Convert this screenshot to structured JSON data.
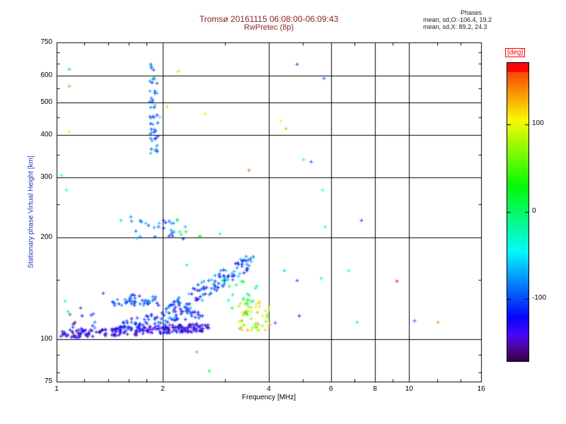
{
  "title": {
    "line1": "Tromsø 20161115 06:08:00-06:09:43",
    "line2": "RwPretec (8p)"
  },
  "phases": {
    "header": "Phases",
    "line_o": "mean, sd,O:-106.4, 19.2",
    "line_x": "mean, sd,X:  89.2, 24.3"
  },
  "colors": {
    "title_color": "#8b2323",
    "y_label_color": "#2233bb",
    "deg_label_color": "#ff0000",
    "frame_color": "#000000"
  },
  "chart_data": {
    "type": "scatter",
    "title": "Tromsø 20161115 06:08:00-06:09:43  RwPretec (8p)",
    "xlabel": "Frequency [MHz]",
    "ylabel": "Stationary phase Virtual Height [km]",
    "x_scale": "log",
    "y_scale": "log",
    "xlim": [
      1,
      16
    ],
    "ylim": [
      75,
      750
    ],
    "x_ticks": [
      1,
      2,
      4,
      6,
      8,
      10,
      16
    ],
    "y_ticks": [
      75,
      100,
      200,
      300,
      400,
      500,
      600,
      750
    ],
    "x_gridlines": [
      2,
      4,
      6,
      8,
      10
    ],
    "y_gridlines": [
      100,
      200,
      300,
      400,
      500,
      600
    ],
    "x_minor": [
      1.2,
      1.4,
      1.6,
      1.8,
      3,
      5,
      7,
      9,
      12,
      14
    ],
    "y_minor": [
      80,
      90,
      150,
      250,
      350,
      450,
      550,
      650,
      700
    ],
    "grid": true,
    "marker": "plus",
    "colorbar": {
      "label": "[deg]",
      "range": [
        -170,
        170
      ],
      "ticks": [
        100,
        0,
        -100
      ],
      "position": "right"
    },
    "points": [
      [
        1.08,
        628,
        20
      ],
      [
        1.08,
        560,
        140
      ],
      [
        1.08,
        412,
        110
      ],
      [
        1.03,
        306,
        -40
      ],
      [
        1.06,
        277,
        -40
      ],
      [
        1.05,
        130,
        -30
      ],
      [
        1.07,
        121,
        10
      ],
      [
        1.12,
        113,
        170
      ],
      [
        2.2,
        620,
        120
      ],
      [
        2.63,
        464,
        100
      ],
      [
        1.95,
        453,
        -45
      ],
      [
        2.05,
        487,
        120
      ],
      [
        4.8,
        649,
        -100
      ],
      [
        5.7,
        590,
        -90
      ],
      [
        4.3,
        442,
        100
      ],
      [
        4.45,
        420,
        130
      ],
      [
        3.5,
        316,
        150
      ],
      [
        5.0,
        340,
        -40
      ],
      [
        5.25,
        335,
        -95
      ],
      [
        5.65,
        277,
        -45
      ],
      [
        5.75,
        215,
        -45
      ],
      [
        7.3,
        225,
        -100
      ],
      [
        6.7,
        160,
        -40
      ],
      [
        5.6,
        152,
        -35
      ],
      [
        4.8,
        150,
        -100
      ],
      [
        7.1,
        113,
        10
      ],
      [
        9.2,
        149,
        175
      ],
      [
        12.0,
        113,
        140
      ],
      [
        2.7,
        81,
        20
      ],
      [
        2.48,
        92,
        140
      ],
      [
        1.35,
        137,
        -100
      ],
      [
        4.85,
        118,
        -110
      ],
      [
        10.3,
        114,
        -90
      ],
      [
        4.15,
        112,
        -95
      ],
      [
        4.4,
        160,
        -60
      ],
      [
        2.9,
        205,
        -30
      ],
      [
        2.33,
        166,
        0
      ]
    ],
    "clusters": [
      {
        "name": "e-region-trace",
        "shape": "trace",
        "n": 220,
        "f": [
          1.02,
          2.7
        ],
        "h": [
          104,
          109
        ],
        "h_jitter": 3,
        "deg": [
          -160,
          -105
        ]
      },
      {
        "name": "e-region-upper",
        "shape": "trace",
        "n": 60,
        "f": [
          1.5,
          2.65
        ],
        "h": [
          112,
          120
        ],
        "h_jitter": 4,
        "deg": [
          -130,
          -90
        ]
      },
      {
        "name": "rising-band",
        "shape": "trace",
        "n": 130,
        "f": [
          2.0,
          3.6
        ],
        "h": [
          115,
          172
        ],
        "h_jitter": 9,
        "deg": [
          -130,
          -60
        ]
      },
      {
        "name": "mid-band",
        "shape": "blob",
        "n": 45,
        "f": [
          1.42,
          1.95
        ],
        "h": [
          126,
          136
        ],
        "h_jitter": 0,
        "deg": [
          -120,
          -75
        ]
      },
      {
        "name": "upper-cluster",
        "shape": "blob",
        "n": 30,
        "f": [
          1.5,
          2.35
        ],
        "h": [
          198,
          232
        ],
        "h_jitter": 0,
        "deg": [
          -140,
          -60
        ]
      },
      {
        "name": "upper-cluster-green",
        "shape": "blob",
        "n": 7,
        "f": [
          2.1,
          2.55
        ],
        "h": [
          200,
          235
        ],
        "h_jitter": 0,
        "deg": [
          -30,
          40
        ]
      },
      {
        "name": "vertical-streak",
        "shape": "blob",
        "n": 48,
        "f": [
          1.83,
          1.93
        ],
        "h": [
          355,
          655
        ],
        "h_jitter": 0,
        "deg": [
          -115,
          -65
        ]
      },
      {
        "name": "yellow-cluster",
        "shape": "blob",
        "n": 50,
        "f": [
          3.25,
          4.0
        ],
        "h": [
          106,
          132
        ],
        "h_jitter": 0,
        "deg": [
          55,
          140
        ]
      },
      {
        "name": "cyan-green-mix",
        "shape": "blob",
        "n": 22,
        "f": [
          2.9,
          3.7
        ],
        "h": [
          118,
          152
        ],
        "h_jitter": 0,
        "deg": [
          -45,
          35
        ]
      },
      {
        "name": "left-sparse",
        "shape": "blob",
        "n": 12,
        "f": [
          1.05,
          1.3
        ],
        "h": [
          108,
          125
        ],
        "h_jitter": 0,
        "deg": [
          -120,
          -70
        ]
      }
    ]
  }
}
